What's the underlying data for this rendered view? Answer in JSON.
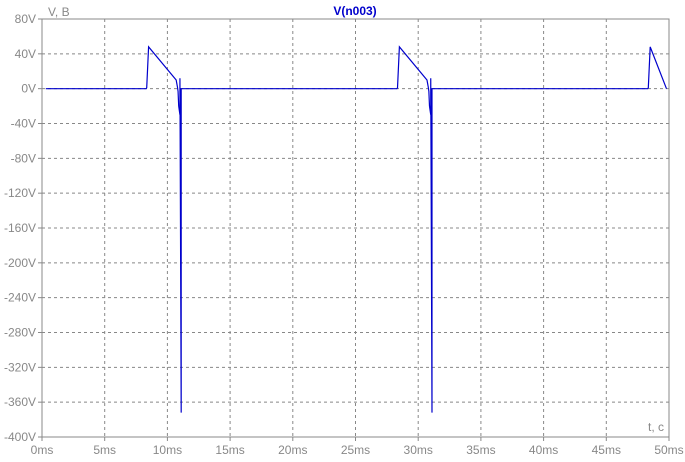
{
  "chart_data": {
    "type": "line",
    "title": "V(n003)",
    "ylabel": "V, B",
    "xlabel": "t, c",
    "xlim": [
      0,
      50
    ],
    "ylim": [
      -400,
      80
    ],
    "x_ticks": [
      "0ms",
      "5ms",
      "10ms",
      "15ms",
      "20ms",
      "25ms",
      "30ms",
      "35ms",
      "40ms",
      "45ms",
      "50ms"
    ],
    "y_ticks": [
      "80V",
      "40V",
      "0V",
      "-40V",
      "-80V",
      "-120V",
      "-160V",
      "-200V",
      "-240V",
      "-280V",
      "-320V",
      "-360V",
      "-400V"
    ],
    "grid": true,
    "series": [
      {
        "name": "V(n003)",
        "color": "#0000cc",
        "x": [
          0.3,
          8.3,
          8.35,
          8.5,
          10.7,
          10.8,
          10.85,
          10.9,
          11.0,
          11.0,
          11.1,
          11.1,
          11.2,
          28.3,
          28.35,
          28.5,
          30.7,
          30.8,
          30.85,
          30.9,
          31.0,
          31.0,
          31.1,
          31.1,
          31.2,
          48.3,
          48.35,
          48.5,
          49.8
        ],
        "y": [
          0,
          0,
          1,
          48,
          10,
          2,
          -3,
          -20,
          -30,
          12,
          -372,
          0,
          0,
          0,
          1,
          48,
          10,
          2,
          -3,
          -20,
          -30,
          12,
          -372,
          0,
          0,
          0,
          1,
          48,
          0
        ]
      }
    ]
  }
}
